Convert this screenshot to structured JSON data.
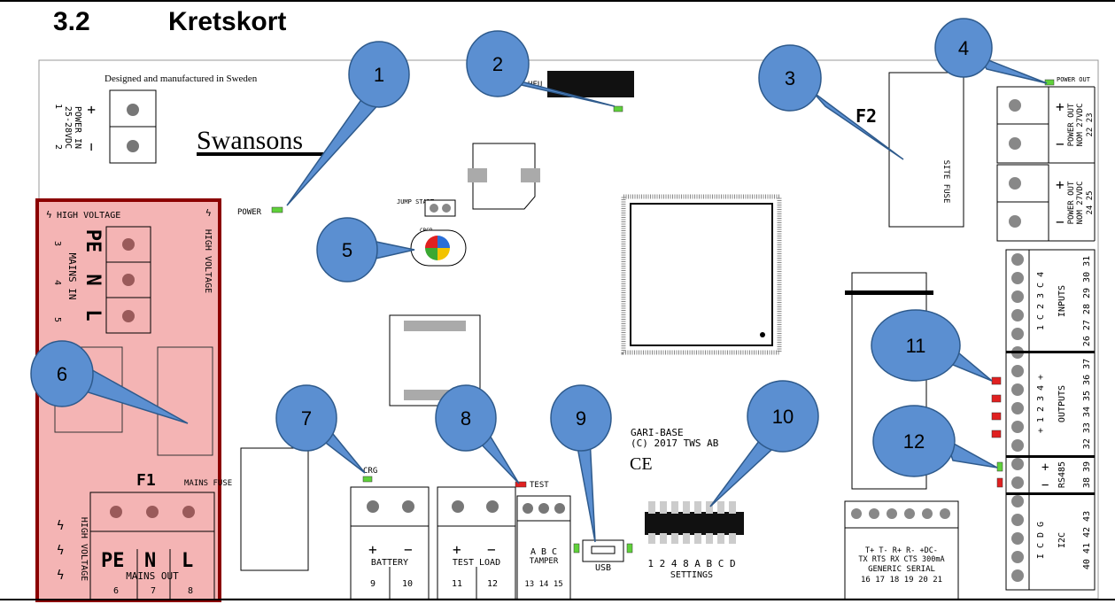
{
  "heading": {
    "number": "3.2",
    "title": "Kretskort"
  },
  "board": {
    "designed": "Designed and manufactured in Sweden",
    "logo": "Swansons",
    "power_in": {
      "line1": "POWER IN",
      "line2": "25-28VDC",
      "plus": "+",
      "minus": "−",
      "pin1": "1",
      "pin2": "2"
    },
    "high_voltage": "HIGH VOLTAGE",
    "mains_in": {
      "label": "MAINS IN",
      "pe": "PE",
      "n": "N",
      "l": "L",
      "p3": "3",
      "p4": "4",
      "p5": "5"
    },
    "power_led": "POWER",
    "jump_start": "JUMP START",
    "crgb": "CRGB",
    "f1": "F1",
    "mains_fuse": "MAINS FUSE",
    "mains_out": {
      "label": "MAINS OUT",
      "pe": "PE",
      "n": "N",
      "l": "L",
      "p6": "6",
      "p7": "7",
      "p8": "8"
    },
    "crg": "CRG",
    "test_led": "TEST",
    "battery": {
      "label": "BATTERY",
      "plus": "+",
      "minus": "−",
      "p9": "9",
      "p10": "10"
    },
    "test_load": {
      "label": "TEST LOAD",
      "plus": "+",
      "minus": "−",
      "p11": "11",
      "p12": "12"
    },
    "tamper": {
      "label": "TAMPER",
      "abc": "A B C",
      "pins": "13 14 15"
    },
    "usb": "USB",
    "gari_line1": "GARI-BASE",
    "gari_line2": "(C) 2017 TWS AB",
    "ce": "CE",
    "settings": {
      "label": "SETTINGS",
      "switches": "1 2 4 8 A B C D"
    },
    "generic_serial": {
      "line1": "T+ T- R+ R- +DC-",
      "line2": "TX RTS RX CTS 300mA",
      "label": "GENERIC SERIAL",
      "pins": "16 17 18 19 20 21"
    },
    "f2": "F2",
    "site_fuse": "SITE FUSE",
    "power_out_led": "POWER OUT",
    "power_out1": {
      "line1": "POWER OUT",
      "line2": "NOM 27VDC",
      "pins": "22 23"
    },
    "power_out2": {
      "line1": "POWER OUT",
      "line2": "NOM 27VDC",
      "pins": "24 25"
    },
    "inputs": {
      "label": "INPUTS",
      "letters": "1 C 2 3 C 4",
      "pins": "26 27 28 29 30 31"
    },
    "outputs": {
      "label": "OUTPUTS",
      "letters": "+ 1 2 3 4 +",
      "pins": "32 33 34 35 36 37"
    },
    "rs485": {
      "label": "RS485",
      "pins": "38 39"
    },
    "i2c": {
      "label": "I2C",
      "letters": "I C D G",
      "pins": "40 41 42 43"
    }
  },
  "callouts": [
    "1",
    "2",
    "3",
    "4",
    "5",
    "6",
    "7",
    "8",
    "9",
    "10",
    "11",
    "12"
  ],
  "colors": {
    "bubble": "#5b8fd1",
    "bubble_stroke": "#2e5a8c",
    "hv_zone": "#f4b4b4",
    "led_green": "#5fd13a",
    "led_red": "#e02020"
  }
}
